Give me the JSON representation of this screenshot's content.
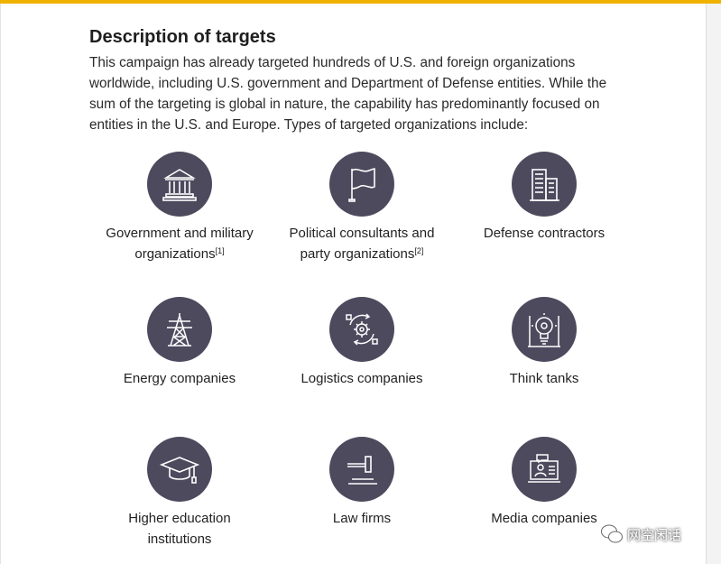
{
  "section": {
    "heading": "Description of targets",
    "intro": "This campaign has already targeted hundreds of U.S. and foreign organizations worldwide, including U.S. government and Department of Defense entities. While the sum of the targeting is global in nature, the capability has predominantly focused on entities in the U.S. and Europe. Types of targeted organizations include:"
  },
  "targets": [
    {
      "line1": "Government and military",
      "line2": "organizations",
      "ref": "[1]",
      "icon": "government-building-icon"
    },
    {
      "line1": "Political consultants and",
      "line2": "party organizations",
      "ref": "[2]",
      "icon": "flag-icon"
    },
    {
      "line1": "Defense contractors",
      "line2": "",
      "ref": "",
      "icon": "office-buildings-icon"
    },
    {
      "line1": "Energy companies",
      "line2": "",
      "ref": "",
      "icon": "power-tower-icon"
    },
    {
      "line1": "Logistics companies",
      "line2": "",
      "ref": "",
      "icon": "gear-cycle-icon"
    },
    {
      "line1": "Think tanks",
      "line2": "",
      "ref": "",
      "icon": "lightbulb-icon"
    },
    {
      "line1": "Higher education",
      "line2": "institutions",
      "ref": "",
      "icon": "graduation-cap-icon"
    },
    {
      "line1": "Law firms",
      "line2": "",
      "ref": "",
      "icon": "gavel-icon"
    },
    {
      "line1": "Media companies",
      "line2": "",
      "ref": "",
      "icon": "media-screen-icon"
    }
  ],
  "watermark": {
    "text": "网空闲话",
    "icon": "wechat-logo-icon"
  },
  "colors": {
    "accent_bar": "#f0b200",
    "icon_circle": "#4d4a5e",
    "icon_stroke": "#ffffff"
  }
}
